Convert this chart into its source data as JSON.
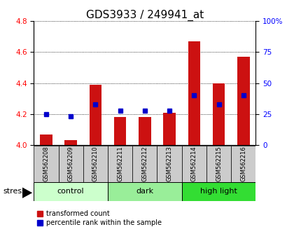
{
  "title": "GDS3933 / 249941_at",
  "samples": [
    "GSM562208",
    "GSM562209",
    "GSM562210",
    "GSM562211",
    "GSM562212",
    "GSM562213",
    "GSM562214",
    "GSM562215",
    "GSM562216"
  ],
  "transformed_counts": [
    4.07,
    4.03,
    4.39,
    4.18,
    4.18,
    4.21,
    4.67,
    4.4,
    4.57
  ],
  "percentile_ranks": [
    25,
    23,
    33,
    28,
    28,
    28,
    40,
    33,
    40
  ],
  "ylim": [
    4.0,
    4.8
  ],
  "yticks_left": [
    4.0,
    4.2,
    4.4,
    4.6,
    4.8
  ],
  "yticks_right": [
    0,
    25,
    50,
    75,
    100
  ],
  "groups": [
    {
      "label": "control",
      "start": 0,
      "end": 3,
      "color": "#ccffcc"
    },
    {
      "label": "dark",
      "start": 3,
      "end": 6,
      "color": "#99ee99"
    },
    {
      "label": "high light",
      "start": 6,
      "end": 9,
      "color": "#33dd33"
    }
  ],
  "bar_color": "#cc1111",
  "dot_color": "#0000cc",
  "bar_width": 0.5,
  "bg_color": "#ffffff",
  "label_bg_color": "#cccccc",
  "stress_label": "stress",
  "legend_red": "transformed count",
  "legend_blue": "percentile rank within the sample",
  "title_fontsize": 11,
  "tick_fontsize": 7.5,
  "sample_fontsize": 6,
  "group_fontsize": 8,
  "legend_fontsize": 7
}
